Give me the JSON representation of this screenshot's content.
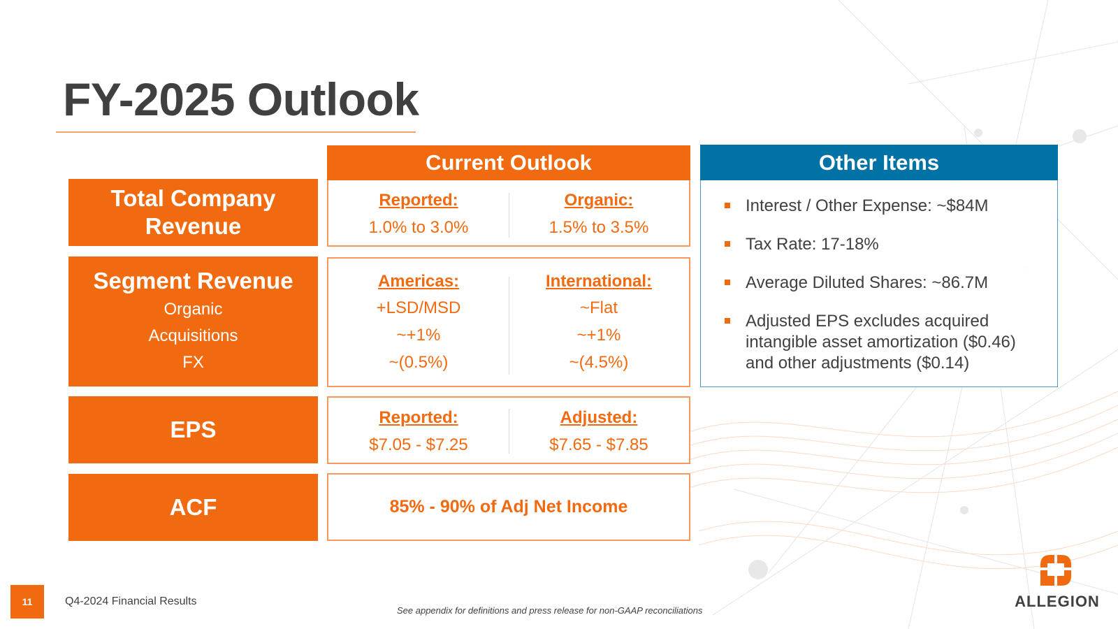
{
  "slide": {
    "title": "FY-2025 Outlook",
    "page_number": "11",
    "footer": "Q4-2024 Financial Results",
    "footnote": "See appendix for definitions and press release for non-GAAP reconciliations",
    "logo_text": "ALLEGION",
    "colors": {
      "accent": "#f26a10",
      "secondary": "#0072a5",
      "text": "#404040"
    }
  },
  "outlook": {
    "header": "Current Outlook",
    "rows": {
      "revenue": {
        "label_line1": "Total Company",
        "label_line2": "Revenue",
        "left_head": "Reported:",
        "left_val": "1.0% to 3.0%",
        "right_head": "Organic:",
        "right_val": "1.5% to 3.5%"
      },
      "segment": {
        "label": "Segment Revenue",
        "sublabels": [
          "Organic",
          "Acquisitions",
          "FX"
        ],
        "left_head": "Americas:",
        "left_vals": [
          "+LSD/MSD",
          "~+1%",
          "~(0.5%)"
        ],
        "right_head": "International:",
        "right_vals": [
          "~Flat",
          "~+1%",
          "~(4.5%)"
        ]
      },
      "eps": {
        "label": "EPS",
        "left_head": "Reported:",
        "left_val": "$7.05 - $7.25",
        "right_head": "Adjusted:",
        "right_val": "$7.65 - $7.85"
      },
      "acf": {
        "label": "ACF",
        "value": "85% - 90% of Adj Net Income"
      }
    }
  },
  "other_items": {
    "header": "Other Items",
    "bullets": [
      "Interest / Other Expense: ~$84M",
      "Tax Rate: 17-18%",
      "Average Diluted Shares: ~86.7M",
      "Adjusted EPS excludes acquired intangible asset amortization ($0.46) and other adjustments ($0.14)"
    ]
  }
}
